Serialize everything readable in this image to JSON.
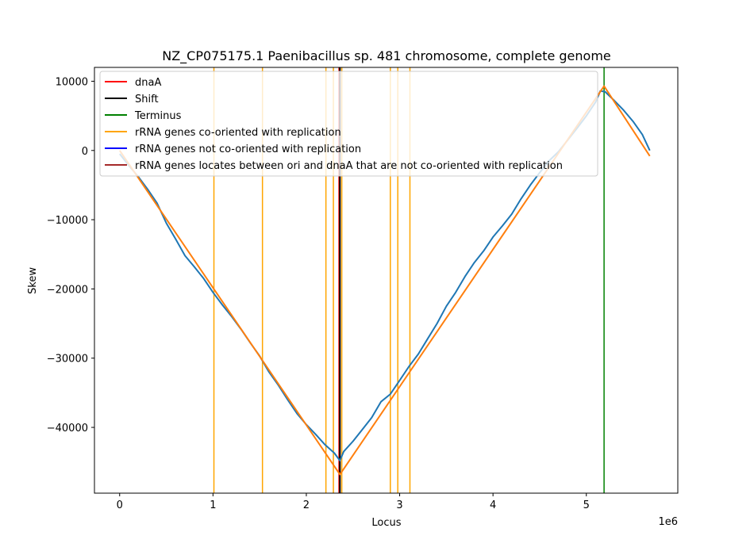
{
  "chart_data": {
    "type": "line",
    "title": "NZ_CP075175.1 Paenibacillus sp. 481 chromosome, complete genome",
    "xlabel": "Locus",
    "ylabel": "Skew",
    "x_offset_label": "1e6",
    "xlim": [
      -270000,
      5980000
    ],
    "ylim": [
      -49500,
      12000
    ],
    "x_ticks": [
      0,
      1000000,
      2000000,
      3000000,
      4000000,
      5000000
    ],
    "x_tick_labels": [
      "0",
      "1",
      "2",
      "3",
      "4",
      "5"
    ],
    "y_ticks": [
      10000,
      0,
      -10000,
      -20000,
      -30000,
      -40000
    ],
    "y_tick_labels": [
      "10000",
      "0",
      "−10000",
      "−20000",
      "−30000",
      "−40000"
    ],
    "grid": false,
    "legend_position": "upper-left",
    "legend": [
      {
        "label": "dnaA",
        "color": "#ff0000"
      },
      {
        "label": "Shift",
        "color": "#000000"
      },
      {
        "label": "Terminus",
        "color": "#008000"
      },
      {
        "label": "rRNA genes co-oriented with replication",
        "color": "#ffa500"
      },
      {
        "label": "rRNA genes not co-oriented with replication",
        "color": "#0000ff"
      },
      {
        "label": "rRNA genes locates between ori and dnaA that are not co-oriented with replication",
        "color": "#a52a2a"
      }
    ],
    "series": [
      {
        "color": "#1f77b4",
        "x": [
          0,
          100000,
          200000,
          300000,
          400000,
          500000,
          600000,
          700000,
          800000,
          900000,
          1000000,
          1100000,
          1200000,
          1300000,
          1400000,
          1500000,
          1600000,
          1700000,
          1800000,
          1900000,
          2000000,
          2100000,
          2200000,
          2300000,
          2360000,
          2400000,
          2500000,
          2600000,
          2700000,
          2800000,
          2900000,
          3000000,
          3100000,
          3200000,
          3300000,
          3400000,
          3500000,
          3600000,
          3700000,
          3800000,
          3900000,
          4000000,
          4100000,
          4200000,
          4300000,
          4400000,
          4500000,
          4600000,
          4700000,
          4800000,
          4900000,
          5000000,
          5100000,
          5150000,
          5200000,
          5300000,
          5400000,
          5500000,
          5600000,
          5680000
        ],
        "y": [
          -500,
          -2200,
          -3800,
          -5600,
          -7600,
          -10500,
          -12800,
          -15200,
          -16800,
          -18500,
          -20500,
          -22300,
          -24000,
          -25800,
          -27800,
          -29700,
          -32000,
          -33900,
          -36000,
          -38000,
          -39600,
          -41000,
          -42500,
          -43700,
          -44800,
          -43500,
          -42000,
          -40300,
          -38600,
          -36300,
          -35200,
          -33200,
          -31200,
          -29400,
          -27200,
          -25000,
          -22500,
          -20500,
          -18200,
          -16200,
          -14500,
          -12500,
          -10900,
          -9200,
          -7000,
          -5000,
          -3200,
          -1500,
          -200,
          1500,
          3200,
          5000,
          7000,
          8600,
          8500,
          7200,
          5800,
          4200,
          2300,
          0
        ]
      },
      {
        "color": "#ff7f0e",
        "x": [
          0,
          2360000,
          5190000,
          5680000
        ],
        "y": [
          0,
          -46800,
          9300,
          -800
        ]
      }
    ],
    "vlines": [
      {
        "x": 1010000,
        "color": "#ffa500"
      },
      {
        "x": 1530000,
        "color": "#ffa500"
      },
      {
        "x": 2210000,
        "color": "#ffa500"
      },
      {
        "x": 2290000,
        "color": "#ffa500"
      },
      {
        "x": 2380000,
        "color": "#ffa500"
      },
      {
        "x": 2900000,
        "color": "#ffa500"
      },
      {
        "x": 2980000,
        "color": "#ffa500"
      },
      {
        "x": 3110000,
        "color": "#ffa500"
      },
      {
        "x": 2350000,
        "color": "#ff0000"
      },
      {
        "x": 2360000,
        "color": "#000000"
      },
      {
        "x": 5190000,
        "color": "#008000"
      }
    ]
  }
}
